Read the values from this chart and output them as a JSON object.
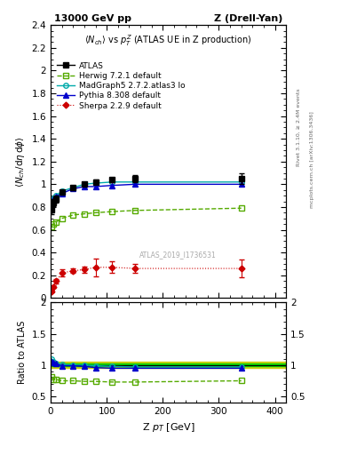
{
  "title_left": "13000 GeV pp",
  "title_right": "Z (Drell-Yan)",
  "plot_title": "<N_{ch}> vs p^{Z}_{T} (ATLAS UE in Z production)",
  "ylabel_main": "<N_{ch}/dη dϕ>",
  "ylabel_ratio": "Ratio to ATLAS",
  "xlabel": "Z p_{T} [GeV]",
  "watermark": "ATLAS_2019_I1736531",
  "right_label1": "Rivet 3.1.10, ≥ 2.4M events",
  "right_label2": "mcplots.cern.ch [arXiv:1306.3436]",
  "atlas_x": [
    2,
    5,
    10,
    20,
    40,
    60,
    80,
    110,
    150,
    340
  ],
  "atlas_y": [
    0.78,
    0.84,
    0.87,
    0.93,
    0.97,
    1.0,
    1.02,
    1.04,
    1.05,
    1.05
  ],
  "atlas_yerr": [
    0.04,
    0.03,
    0.03,
    0.02,
    0.02,
    0.02,
    0.02,
    0.02,
    0.03,
    0.05
  ],
  "herwig_x": [
    2,
    5,
    10,
    20,
    40,
    60,
    80,
    110,
    150,
    340
  ],
  "herwig_y": [
    0.63,
    0.65,
    0.67,
    0.7,
    0.73,
    0.74,
    0.75,
    0.76,
    0.77,
    0.79
  ],
  "madgraph_x": [
    2,
    5,
    10,
    20,
    40,
    60,
    80,
    110,
    150,
    340
  ],
  "madgraph_y": [
    0.86,
    0.88,
    0.9,
    0.94,
    0.97,
    1.0,
    1.01,
    1.02,
    1.02,
    1.02
  ],
  "pythia_x": [
    2,
    5,
    10,
    20,
    40,
    60,
    80,
    110,
    150,
    340
  ],
  "pythia_y": [
    0.82,
    0.87,
    0.89,
    0.92,
    0.96,
    0.98,
    0.98,
    0.99,
    1.0,
    1.0
  ],
  "sherpa_x": [
    2,
    5,
    10,
    20,
    40,
    60,
    80,
    110,
    150,
    340
  ],
  "sherpa_y": [
    0.06,
    0.1,
    0.15,
    0.22,
    0.24,
    0.25,
    0.27,
    0.27,
    0.26,
    0.26
  ],
  "sherpa_yerr": [
    0.01,
    0.01,
    0.02,
    0.03,
    0.02,
    0.03,
    0.08,
    0.05,
    0.04,
    0.08
  ],
  "herwig_ratio": [
    0.81,
    0.77,
    0.77,
    0.75,
    0.75,
    0.74,
    0.74,
    0.73,
    0.73,
    0.75
  ],
  "madgraph_ratio": [
    1.1,
    1.05,
    1.03,
    1.01,
    1.0,
    1.0,
    0.99,
    0.98,
    0.97,
    0.97
  ],
  "pythia_ratio": [
    1.05,
    1.04,
    1.02,
    0.99,
    0.99,
    0.98,
    0.96,
    0.95,
    0.95,
    0.95
  ],
  "atlas_band_inner": 0.02,
  "atlas_band_outer": 0.05,
  "xlim": [
    0,
    420
  ],
  "ylim_main": [
    0.0,
    2.4
  ],
  "ylim_ratio": [
    0.4,
    2.0
  ],
  "color_atlas": "#000000",
  "color_herwig": "#55aa00",
  "color_madgraph": "#00aaaa",
  "color_pythia": "#0000cc",
  "color_sherpa": "#cc0000",
  "color_band_inner": "#00cc00",
  "color_band_outer": "#cccc00",
  "main_yticks": [
    0,
    0.2,
    0.4,
    0.6,
    0.8,
    1.0,
    1.2,
    1.4,
    1.6,
    1.8,
    2.0,
    2.2,
    2.4
  ],
  "ratio_yticks": [
    0.5,
    1.0,
    1.5,
    2.0
  ]
}
